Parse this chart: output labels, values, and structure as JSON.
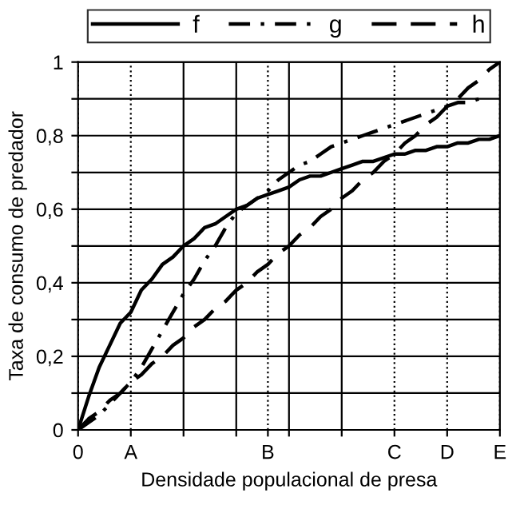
{
  "chart_data": {
    "type": "line",
    "xlabel": "Densidade populacional de presa",
    "ylabel": "Taxa de consumo de predador",
    "categories": [
      "0",
      null,
      null,
      null,
      null,
      "A",
      null,
      null,
      null,
      null,
      null,
      null,
      null,
      null,
      null,
      null,
      null,
      null,
      "B",
      null,
      null,
      null,
      null,
      null,
      null,
      null,
      null,
      null,
      null,
      null,
      "C",
      null,
      null,
      null,
      null,
      "D",
      null,
      null,
      null,
      null,
      "E"
    ],
    "ylim": [
      0,
      1
    ],
    "yticks": [
      0,
      {
        "value": 0.1,
        "label": null
      },
      {
        "value": 0.2,
        "label": "0,2"
      },
      {
        "value": 0.3,
        "label": null
      },
      {
        "value": 0.4,
        "label": "0,4"
      },
      {
        "value": 0.5,
        "label": null
      },
      {
        "value": 0.6,
        "label": "0,6"
      },
      {
        "value": 0.7,
        "label": null
      },
      {
        "value": 0.8,
        "label": "0,8"
      },
      {
        "value": 0.9,
        "label": null
      },
      1
    ],
    "grid": true,
    "legend": "top",
    "marker": "none",
    "series": [
      {
        "name": "f",
        "color": "#000000",
        "line_style": "solid",
        "values": [
          0,
          0.09,
          0.17,
          0.23,
          0.29,
          0.32,
          0.38,
          0.41,
          0.45,
          0.47,
          0.5,
          0.52,
          0.55,
          0.56,
          0.58,
          0.6,
          0.61,
          0.63,
          0.64,
          0.65,
          0.66,
          0.68,
          0.69,
          0.69,
          0.7,
          0.71,
          0.72,
          0.73,
          0.73,
          0.74,
          0.75,
          0.75,
          0.76,
          0.76,
          0.77,
          0.77,
          0.78,
          0.78,
          0.79,
          0.79,
          0.8
        ]
      },
      {
        "name": "g",
        "color": "#000000",
        "line_style": "dashdot",
        "values": [
          0,
          0.02,
          0.04,
          0.07,
          0.1,
          0.13,
          0.17,
          0.22,
          0.27,
          0.32,
          0.37,
          0.41,
          0.46,
          0.5,
          0.55,
          0.59,
          0.61,
          0.63,
          0.65,
          0.68,
          0.7,
          0.72,
          0.73,
          0.75,
          0.77,
          0.78,
          0.79,
          0.8,
          0.81,
          0.82,
          0.83,
          0.84,
          0.85,
          0.86,
          0.87,
          0.88,
          0.89,
          0.89,
          0.9,
          null,
          null
        ]
      },
      {
        "name": "h",
        "color": "#000000",
        "line_style": "dashed",
        "values": [
          0,
          0.03,
          0.05,
          0.08,
          0.1,
          0.13,
          0.15,
          0.18,
          0.2,
          0.23,
          0.25,
          0.28,
          0.3,
          0.33,
          0.35,
          0.38,
          0.4,
          0.43,
          0.45,
          0.48,
          0.5,
          0.53,
          0.55,
          0.58,
          0.6,
          0.63,
          0.65,
          0.68,
          0.7,
          0.73,
          0.75,
          0.78,
          0.8,
          0.83,
          0.85,
          0.88,
          0.9,
          0.93,
          0.95,
          0.98,
          1
        ]
      }
    ]
  }
}
